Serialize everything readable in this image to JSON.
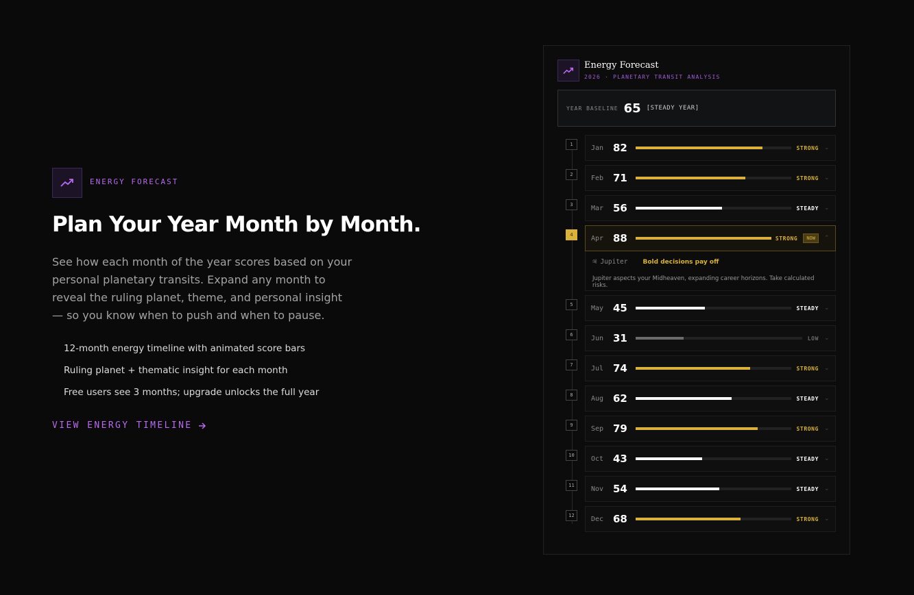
{
  "section": {
    "eyebrow": "ENERGY FORECAST",
    "heading": "Plan Your Year Month by Month.",
    "description": "See how each month of the year scores based on your personal planetary transits. Expand any month to reveal the ruling planet, theme, and personal insight — so you know when to push and when to pause.",
    "features": [
      "12-month energy timeline with animated score bars",
      "Ruling planet + thematic insight for each month",
      "Free users see 3 months; upgrade unlocks the full year"
    ],
    "cta": "VIEW ENERGY TIMELINE"
  },
  "panel": {
    "title": "Energy Forecast",
    "subtitle": "2026 · PLANETARY TRANSIT ANALYSIS",
    "baseline_label": "YEAR BASELINE",
    "baseline_score": 65,
    "baseline_tag": "[STEADY YEAR]",
    "months": [
      {
        "index": "1",
        "month": "Jan",
        "score": 82,
        "level": "STRONG",
        "color": "#d9b13b"
      },
      {
        "index": "2",
        "month": "Feb",
        "score": 71,
        "level": "STRONG",
        "color": "#d9b13b"
      },
      {
        "index": "3",
        "month": "Mar",
        "score": 56,
        "level": "STEADY",
        "color": "#ffffff"
      },
      {
        "index": "4",
        "month": "Apr",
        "score": 88,
        "level": "STRONG",
        "color": "#d9b13b",
        "badge": "NOW",
        "detail": {
          "planet": "♃ Jupiter",
          "theme": "Bold decisions pay off",
          "text": "Jupiter aspects your Midheaven, expanding career horizons. Take calculated risks."
        }
      },
      {
        "index": "5",
        "month": "May",
        "score": 45,
        "level": "STEADY",
        "color": "#ffffff"
      },
      {
        "index": "6",
        "month": "Jun",
        "score": 31,
        "level": "LOW",
        "color": "#6b6b6b"
      },
      {
        "index": "7",
        "month": "Jul",
        "score": 74,
        "level": "STRONG",
        "color": "#d9b13b"
      },
      {
        "index": "8",
        "month": "Aug",
        "score": 62,
        "level": "STEADY",
        "color": "#ffffff"
      },
      {
        "index": "9",
        "month": "Sep",
        "score": 79,
        "level": "STRONG",
        "color": "#d9b13b"
      },
      {
        "index": "10",
        "month": "Oct",
        "score": 43,
        "level": "STEADY",
        "color": "#ffffff"
      },
      {
        "index": "11",
        "month": "Nov",
        "score": 54,
        "level": "STEADY",
        "color": "#ffffff"
      },
      {
        "index": "12",
        "month": "Dec",
        "score": 68,
        "level": "STRONG",
        "color": "#d9b13b"
      }
    ]
  }
}
